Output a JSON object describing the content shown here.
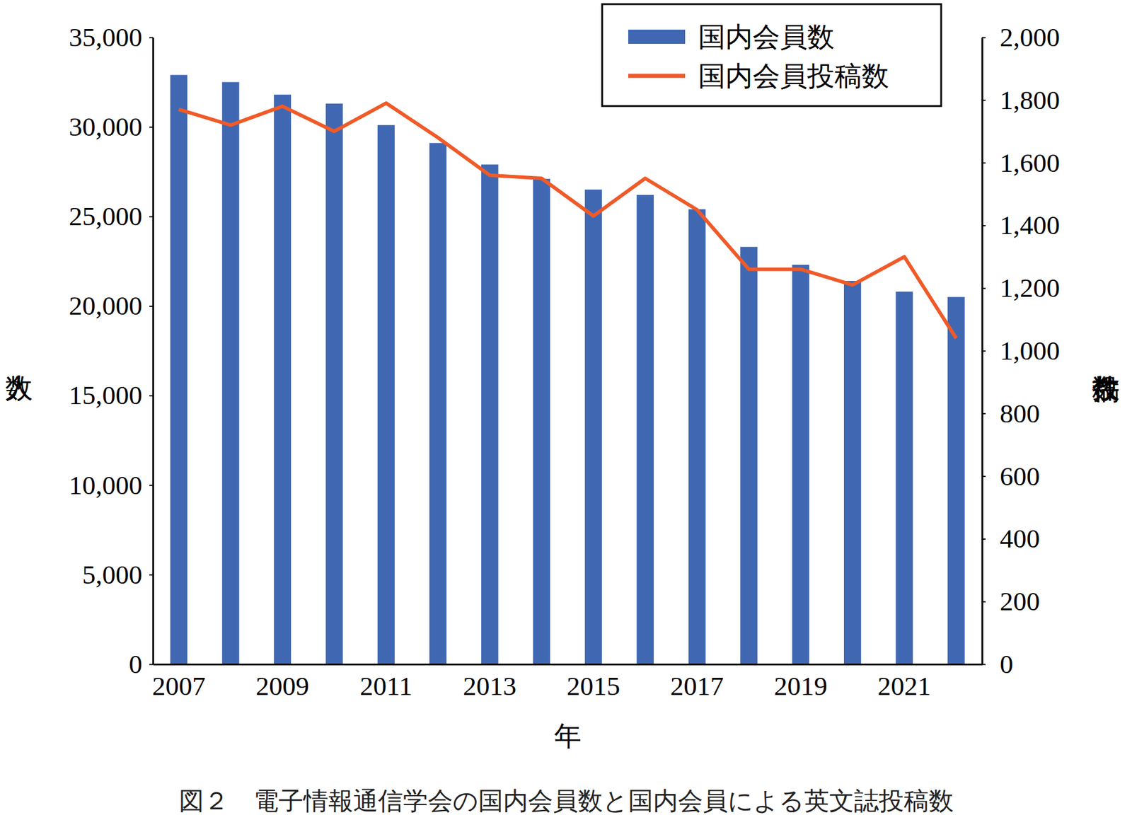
{
  "chart_data": {
    "type": "bar",
    "title": "図２　電子情報通信学会の国内会員数と国内会員による英文誌投稿数",
    "x_label": "年",
    "y_label": "人数",
    "y2_label": "投稿件数",
    "categories": [
      "2007",
      null,
      "2009",
      null,
      "2011",
      null,
      "2013",
      null,
      "2015",
      null,
      "2017",
      null,
      "2019",
      null,
      "2021",
      null
    ],
    "series": [
      {
        "name": "国内会員数",
        "type": "bar",
        "color": "#4068b2",
        "values": [
          32900,
          32500,
          31800,
          31300,
          30100,
          29100,
          27900,
          27100,
          26500,
          26200,
          25400,
          23300,
          22300,
          21400,
          20800,
          20500
        ]
      },
      {
        "name": "国内会員投稿数",
        "type": "line",
        "axis": "y2",
        "color": "#f05a28",
        "values": [
          1770,
          1720,
          1780,
          1700,
          1790,
          1680,
          1560,
          1550,
          1430,
          1550,
          1450,
          1260,
          1260,
          1210,
          1300,
          1040
        ]
      }
    ],
    "ylim": [
      0,
      35000
    ],
    "yticks": [
      0,
      {
        "value": 5000,
        "label": "5,000"
      },
      {
        "value": 10000,
        "label": "10,000"
      },
      {
        "value": 15000,
        "label": "15,000"
      },
      {
        "value": 20000,
        "label": "20,000"
      },
      {
        "value": 25000,
        "label": "25,000"
      },
      {
        "value": 30000,
        "label": "30,000"
      },
      {
        "value": 35000,
        "label": "35,000"
      }
    ],
    "y2lim": [
      0,
      2000
    ],
    "y2ticks": [
      0,
      200,
      400,
      600,
      800,
      {
        "value": 1000,
        "label": "1,000"
      },
      {
        "value": 1200,
        "label": "1,200"
      },
      {
        "value": 1400,
        "label": "1,400"
      },
      {
        "value": 1600,
        "label": "1,600"
      },
      {
        "value": 1800,
        "label": "1,800"
      },
      {
        "value": 2000,
        "label": "2,000"
      }
    ],
    "legend": "upper right",
    "grid": false
  }
}
